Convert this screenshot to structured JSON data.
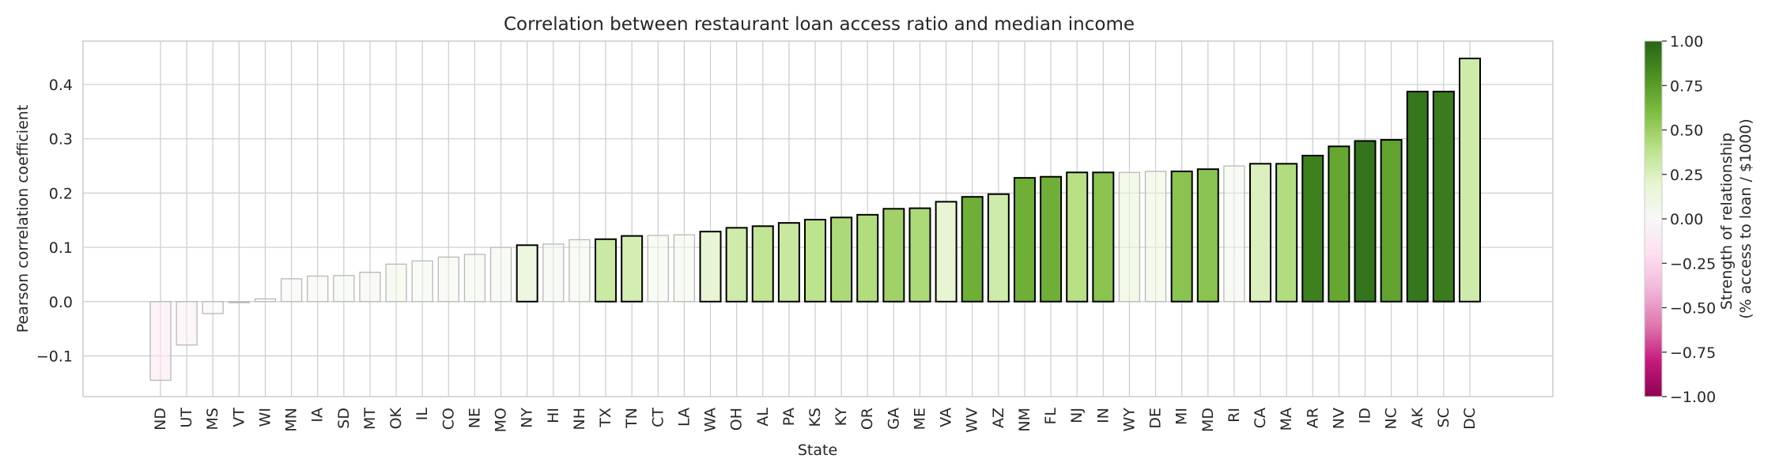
{
  "chart_data": {
    "type": "bar",
    "title": "Correlation between restaurant loan access ratio and median income",
    "xlabel": "State",
    "ylabel": "Pearson correlation coefficient",
    "ylim": [
      -0.175,
      0.48
    ],
    "yticks": [
      -0.1,
      0.0,
      0.1,
      0.2,
      0.3,
      0.4
    ],
    "ytick_labels": [
      "−0.1",
      "0.0",
      "0.1",
      "0.2",
      "0.3",
      "0.4"
    ],
    "grid": true,
    "categories": [
      "ND",
      "UT",
      "MS",
      "VT",
      "WI",
      "MN",
      "IA",
      "SD",
      "MT",
      "OK",
      "IL",
      "CO",
      "NE",
      "MO",
      "NY",
      "HI",
      "NH",
      "TX",
      "TN",
      "CT",
      "LA",
      "WA",
      "OH",
      "AL",
      "PA",
      "KS",
      "KY",
      "OR",
      "GA",
      "ME",
      "VA",
      "WV",
      "AZ",
      "NM",
      "FL",
      "NJ",
      "IN",
      "WY",
      "DE",
      "MI",
      "MD",
      "RI",
      "CA",
      "MA",
      "AR",
      "NV",
      "ID",
      "NC",
      "AK",
      "SC",
      "DC"
    ],
    "values": [
      -0.145,
      -0.08,
      -0.022,
      -0.002,
      0.005,
      0.042,
      0.047,
      0.048,
      0.054,
      0.069,
      0.075,
      0.082,
      0.087,
      0.1,
      0.104,
      0.106,
      0.114,
      0.115,
      0.121,
      0.122,
      0.123,
      0.129,
      0.136,
      0.139,
      0.145,
      0.151,
      0.155,
      0.16,
      0.171,
      0.172,
      0.184,
      0.193,
      0.198,
      0.228,
      0.23,
      0.238,
      0.238,
      0.238,
      0.24,
      0.24,
      0.244,
      0.25,
      0.254,
      0.254,
      0.269,
      0.286,
      0.296,
      0.298,
      0.387,
      0.387,
      0.448
    ],
    "color_values": [
      -0.12,
      -0.08,
      -0.02,
      0.0,
      0.0,
      0.03,
      0.04,
      0.05,
      0.06,
      0.1,
      0.05,
      0.06,
      0.07,
      0.06,
      0.12,
      0.06,
      0.07,
      0.32,
      0.28,
      0.07,
      0.07,
      0.18,
      0.3,
      0.36,
      0.33,
      0.38,
      0.44,
      0.42,
      0.48,
      0.44,
      0.18,
      0.66,
      0.3,
      0.66,
      0.66,
      0.4,
      0.56,
      0.16,
      0.12,
      0.56,
      0.56,
      0.06,
      0.25,
      0.42,
      0.88,
      0.7,
      0.93,
      0.72,
      0.92,
      0.9,
      0.3
    ],
    "bold_outline": [
      false,
      false,
      false,
      false,
      false,
      false,
      false,
      false,
      false,
      false,
      false,
      false,
      false,
      false,
      true,
      false,
      false,
      true,
      true,
      false,
      false,
      true,
      true,
      true,
      true,
      true,
      true,
      true,
      true,
      true,
      true,
      true,
      true,
      true,
      true,
      true,
      true,
      false,
      false,
      true,
      true,
      false,
      true,
      true,
      true,
      true,
      true,
      true,
      true,
      true,
      true
    ],
    "colormap": "PiYG",
    "colorbar": {
      "label_lines": [
        "Strength of relationship",
        "(% access to loan / $1000)"
      ],
      "ticks": [
        1.0,
        0.75,
        0.5,
        0.25,
        0.0,
        -0.25,
        -0.5,
        -0.75,
        -1.0
      ],
      "tick_labels": [
        "1.00",
        "0.75",
        "0.50",
        "0.25",
        "0.00",
        "−0.25",
        "−0.50",
        "−0.75",
        "−1.00"
      ],
      "range": [
        -1.0,
        1.0
      ]
    },
    "colors": {
      "grid": "#cccccc",
      "text": "#262626",
      "bold_edge": "#000000",
      "faint_edge": "#b8b8b8"
    }
  }
}
